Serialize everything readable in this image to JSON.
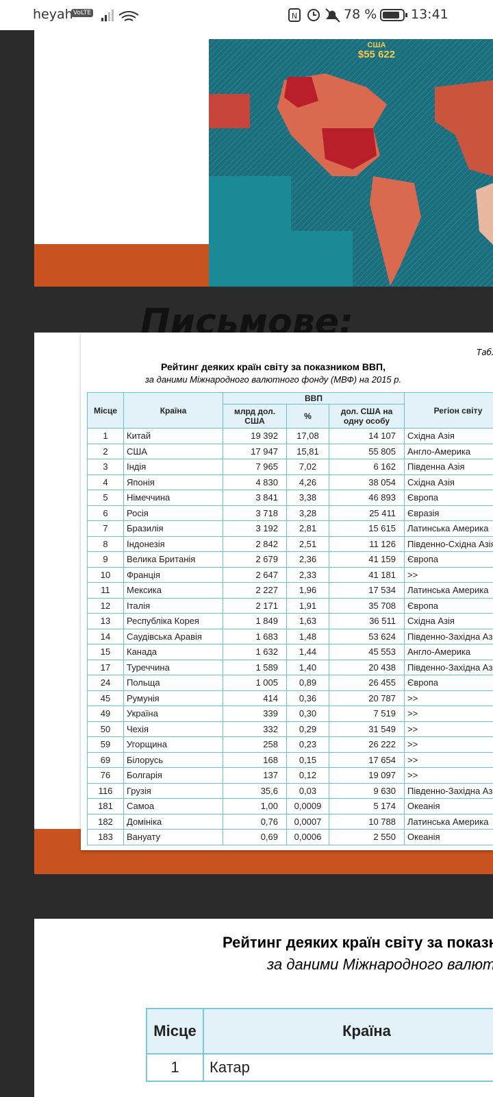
{
  "status_bar": {
    "carrier": "heyah",
    "network": "VoLTE",
    "battery": "78 %",
    "time": "13:41"
  },
  "slide_1": {
    "map_labels": [
      "США",
      "$55 622"
    ]
  },
  "slide_2": {
    "heading": "Письмове:",
    "table_label": "Таблиця",
    "title": "Рейтинг деяких країн світу за показником ВВП,",
    "subtitle": "за даними Міжнародного валютного фонду (МВФ) на 2015 р.",
    "headers": {
      "rank": "Місце",
      "country": "Країна",
      "gdp": "ВВП",
      "gdp_total": "млрд дол. США",
      "gdp_share": "%",
      "gdp_per_capita": "дол. США на одну особу",
      "region": "Регіон світу"
    },
    "rows": [
      [
        "1",
        "Китай",
        "19 392",
        "17,08",
        "14 107",
        "Східна Азія"
      ],
      [
        "2",
        "США",
        "17 947",
        "15,81",
        "55 805",
        "Англо-Америка"
      ],
      [
        "3",
        "Індія",
        "7 965",
        "7,02",
        "6 162",
        "Південна Азія"
      ],
      [
        "4",
        "Японія",
        "4 830",
        "4,26",
        "38 054",
        "Східна Азія"
      ],
      [
        "5",
        "Німеччина",
        "3 841",
        "3,38",
        "46 893",
        "Європа"
      ],
      [
        "6",
        "Росія",
        "3 718",
        "3,28",
        "25 411",
        "Євразія"
      ],
      [
        "7",
        "Бразилія",
        "3 192",
        "2,81",
        "15 615",
        "Латинська Америка"
      ],
      [
        "8",
        "Індонезія",
        "2 842",
        "2,51",
        "11 126",
        "Південно-Східна Азія"
      ],
      [
        "9",
        "Велика Британія",
        "2 679",
        "2,36",
        "41 159",
        "Європа"
      ],
      [
        "10",
        "Франція",
        "2 647",
        "2,33",
        "41 181",
        ">>"
      ],
      [
        "11",
        "Мексика",
        "2 227",
        "1,96",
        "17 534",
        "Латинська Америка"
      ],
      [
        "12",
        "Італія",
        "2 171",
        "1,91",
        "35 708",
        "Європа"
      ],
      [
        "13",
        "Республіка Корея",
        "1 849",
        "1,63",
        "36 511",
        "Східна Азія"
      ],
      [
        "14",
        "Саудівська Аравія",
        "1 683",
        "1,48",
        "53 624",
        "Південно-Західна Азія"
      ],
      [
        "15",
        "Канада",
        "1 632",
        "1,44",
        "45 553",
        "Англо-Америка"
      ],
      [
        "17",
        "Туреччина",
        "1 589",
        "1,40",
        "20 438",
        "Південно-Західна Азія"
      ],
      [
        "24",
        "Польща",
        "1 005",
        "0,89",
        "26 455",
        "Європа"
      ],
      [
        "45",
        "Румунія",
        "414",
        "0,36",
        "20 787",
        ">>"
      ],
      [
        "49",
        "Україна",
        "339",
        "0,30",
        "7 519",
        ">>"
      ],
      [
        "50",
        "Чехія",
        "332",
        "0,29",
        "31 549",
        ">>"
      ],
      [
        "59",
        "Угорщина",
        "258",
        "0,23",
        "26 222",
        ">>"
      ],
      [
        "69",
        "Білорусь",
        "168",
        "0,15",
        "17 654",
        ">>"
      ],
      [
        "76",
        "Болгарія",
        "137",
        "0,12",
        "19 097",
        ">>"
      ],
      [
        "116",
        "Грузія",
        "35,6",
        "0,03",
        "9 630",
        "Південно-Західна Азія"
      ],
      [
        "181",
        "Самоа",
        "1,00",
        "0,0009",
        "5 174",
        "Океанія"
      ],
      [
        "182",
        "Домініка",
        "0,76",
        "0,0007",
        "10 788",
        "Латинська Америка"
      ],
      [
        "183",
        "Вануату",
        "0,69",
        "0,0006",
        "2 550",
        "Океанія"
      ]
    ]
  },
  "slide_3": {
    "title": "Рейтинг деяких країн світу за показником",
    "subtitle": "за даними Міжнародного валютного фонду",
    "headers": [
      "Місце",
      "Країна"
    ],
    "rows": [
      [
        "1",
        "Катар"
      ]
    ]
  }
}
